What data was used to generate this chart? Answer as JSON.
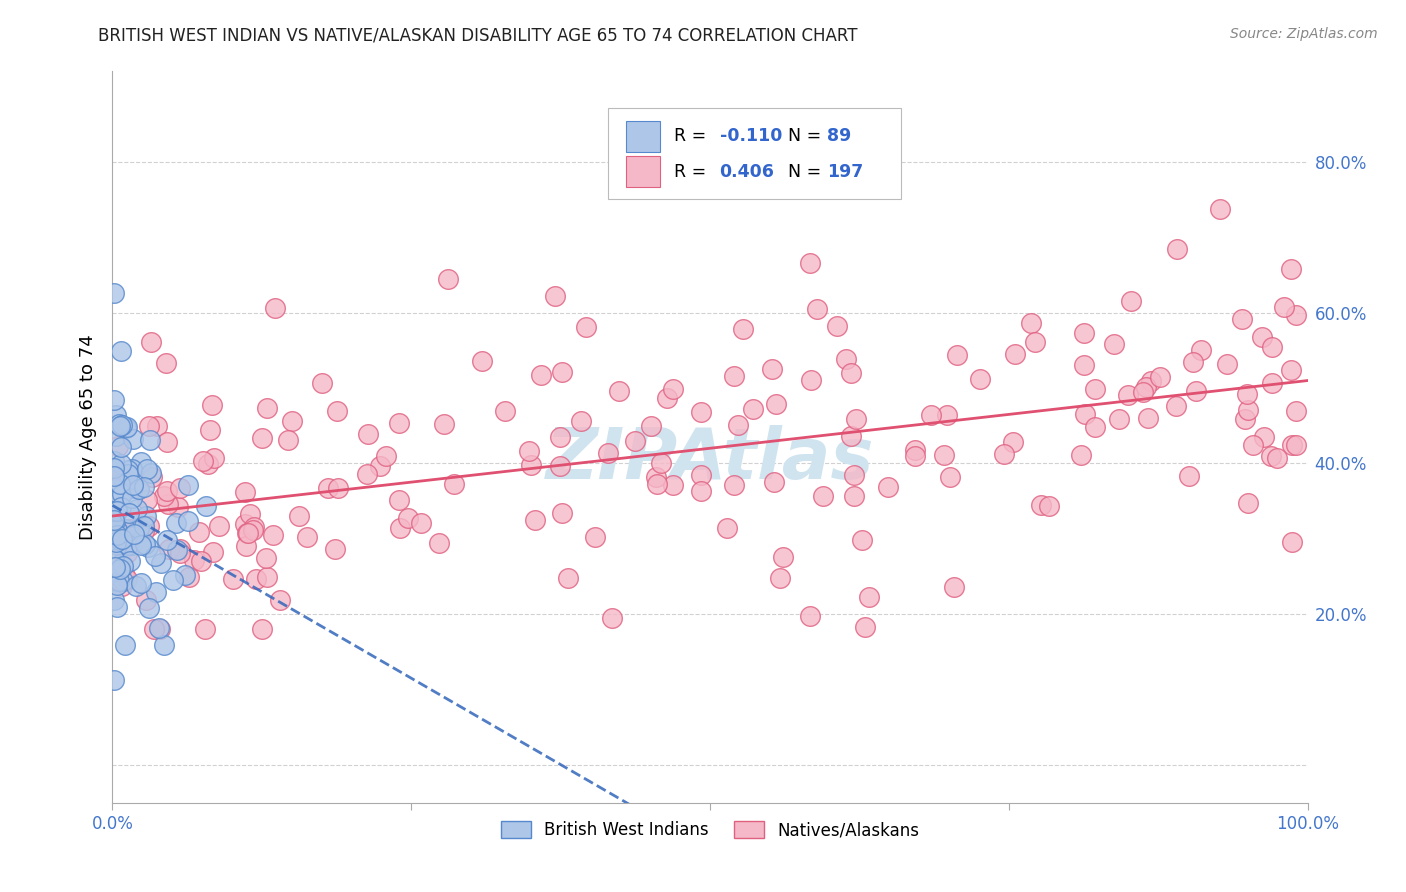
{
  "title": "BRITISH WEST INDIAN VS NATIVE/ALASKAN DISABILITY AGE 65 TO 74 CORRELATION CHART",
  "source": "Source: ZipAtlas.com",
  "ylabel": "Disability Age 65 to 74",
  "xlim": [
    0.0,
    1.0
  ],
  "ylim": [
    -0.05,
    0.92
  ],
  "xticks": [
    0.0,
    0.25,
    0.5,
    0.75,
    1.0
  ],
  "xtick_labels": [
    "0.0%",
    "",
    "",
    "",
    "100.0%"
  ],
  "yticks": [
    0.0,
    0.2,
    0.4,
    0.6,
    0.8
  ],
  "ytick_labels_right": [
    "",
    "20.0%",
    "40.0%",
    "60.0%",
    "80.0%"
  ],
  "blue_R": -0.11,
  "blue_N": 89,
  "pink_R": 0.406,
  "pink_N": 197,
  "blue_color": "#aec6e8",
  "pink_color": "#f5b8c8",
  "blue_edge_color": "#5588cc",
  "pink_edge_color": "#e06080",
  "blue_line_color": "#3366bb",
  "pink_line_color": "#e05070",
  "legend_R_color": "#3366cc",
  "watermark_color": "#d0e4f0",
  "grid_color": "#cccccc",
  "tick_color": "#4477cc",
  "source_color": "#888888",
  "title_color": "#222222"
}
